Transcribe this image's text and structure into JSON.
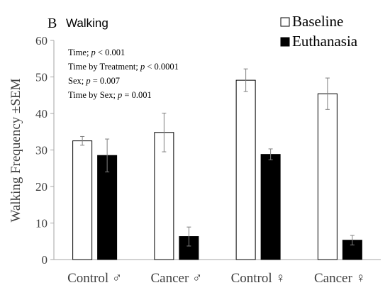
{
  "panel_letter": "B",
  "panel_title": "Walking",
  "stats": [
    {
      "label": "Time; ",
      "p": "p",
      "rel": " < 0.001"
    },
    {
      "label": "Time by Treatment; ",
      "p": "p",
      "rel": " < 0.0001"
    },
    {
      "label": "Sex; ",
      "p": "p",
      "rel": " = 0.007"
    },
    {
      "label": "Time by Sex; ",
      "p": "p",
      "rel": " = 0.001"
    }
  ],
  "colors": {
    "baseline_fill": "#ffffff",
    "euthanasia_fill": "#000000",
    "stroke": "#000000",
    "error": "#808080",
    "axis": "#a6a6a6"
  },
  "chart_data": {
    "type": "bar",
    "title": "",
    "ylabel": "Walking Frequency ±SEM",
    "xlabel": "",
    "ylim": [
      0,
      60
    ],
    "yticks": [
      0,
      10,
      20,
      30,
      40,
      50,
      60
    ],
    "grid": false,
    "legend_position": "top-right",
    "categories": [
      "Control ♂",
      "Cancer ♂",
      "Control ♀",
      "Cancer ♀"
    ],
    "series": [
      {
        "name": "Baseline",
        "values": [
          32.5,
          34.8,
          49.1,
          45.4
        ],
        "errors": [
          1.2,
          5.3,
          3.1,
          4.3
        ]
      },
      {
        "name": "Euthanasia",
        "values": [
          28.5,
          6.3,
          28.8,
          5.3
        ],
        "errors": [
          4.5,
          2.6,
          1.5,
          1.3
        ]
      }
    ]
  }
}
